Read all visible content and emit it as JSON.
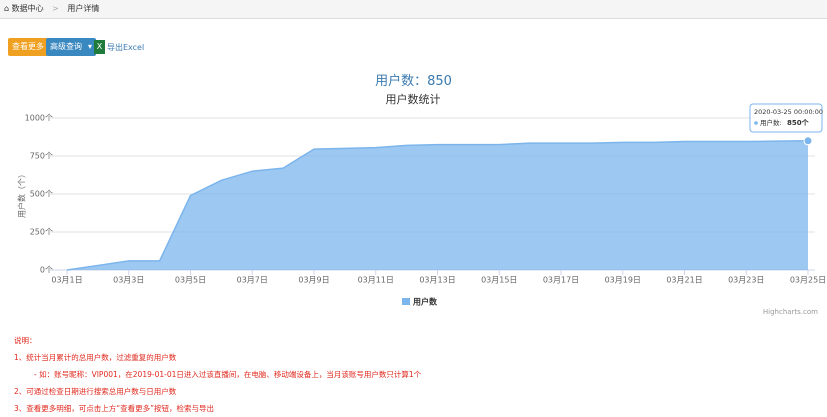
{
  "breadcrumb": [
    "数据中心",
    "用户详情"
  ],
  "buttons": {
    "more": "查看更多",
    "query": "高级查询",
    "export": "导出Excel"
  },
  "summary": "用户数：850",
  "chart_data": {
    "type": "area",
    "title": "用户数统计",
    "categories": [
      "03月1日",
      null,
      "03月3日",
      null,
      "03月5日",
      null,
      "03月7日",
      null,
      "03月9日",
      null,
      "03月11日",
      null,
      "03月13日",
      null,
      "03月15日",
      null,
      "03月17日",
      null,
      "03月19日",
      null,
      "03月21日",
      null,
      "03月23日",
      null,
      "03月25日"
    ],
    "series": [
      {
        "name": "用户数",
        "color": "#7cb5ec",
        "values": [
          0,
          30,
          60,
          60,
          490,
          590,
          650,
          670,
          795,
          800,
          805,
          820,
          825,
          825,
          825,
          835,
          835,
          835,
          840,
          840,
          845,
          845,
          845,
          848,
          850
        ]
      }
    ],
    "y_label": "用户数（个）",
    "ylim": [
      0,
      1000
    ],
    "yticks": [
      {
        "value": 0,
        "label": "0个"
      },
      {
        "value": 250,
        "label": "250个"
      },
      {
        "value": 500,
        "label": "500个"
      },
      {
        "value": 750,
        "label": "750个"
      },
      {
        "value": 1000,
        "label": "1000个"
      }
    ],
    "grid": true,
    "legend": "bottom",
    "tooltip": {
      "date": "2020-03-25 00:00:00",
      "series": "用户数:",
      "value_label": "850个"
    },
    "credits": "Highcharts.com"
  },
  "notes": [
    "说明：",
    "1、统计当月累计的总用户数，过滤重复的用户数",
    "- 如：账号昵称：VIP001，在2019-01-01日进入过该直播间，在电脑、移动端设备上，当月该账号用户数只计算1个",
    "2、可通过检查日期进行搜索总用户数与日用户数",
    "3、查看更多明细，可点击上方“查看更多”按钮，检索与导出"
  ]
}
